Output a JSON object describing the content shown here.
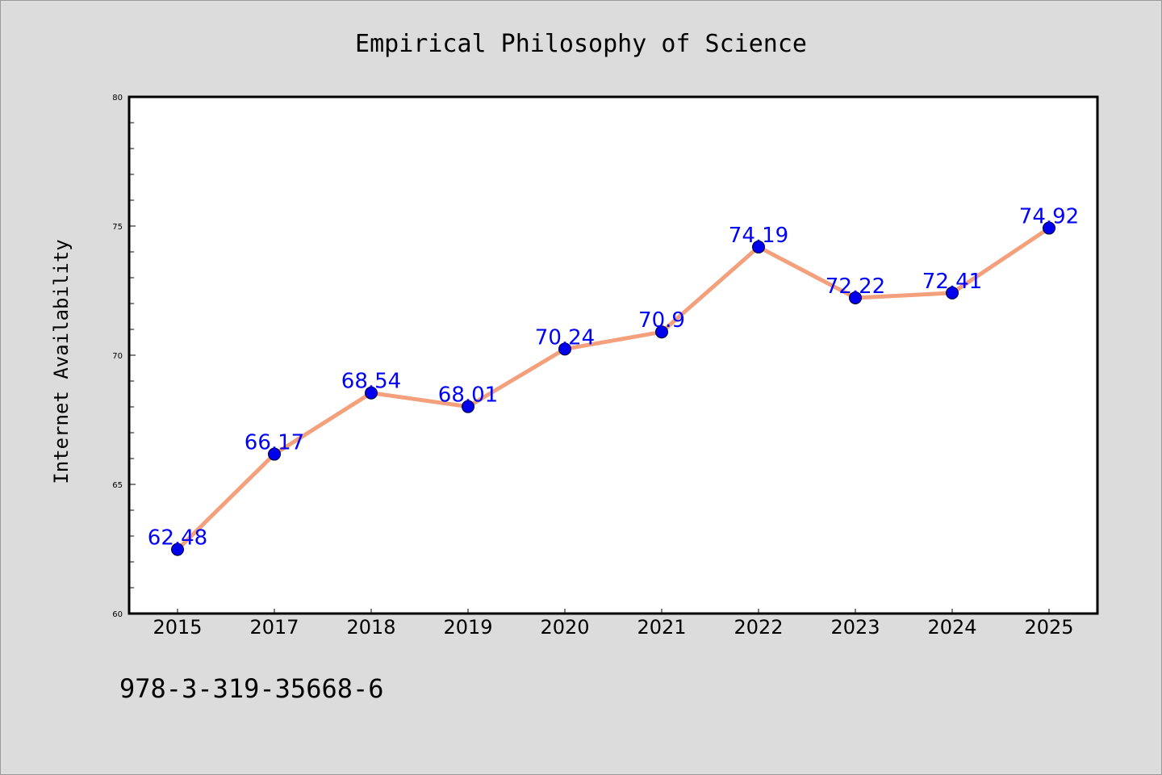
{
  "chart_data": {
    "type": "line",
    "title": "Empirical Philosophy of Science",
    "xlabel": "",
    "ylabel": "Internet Availability",
    "categories": [
      "2015",
      "2017",
      "2018",
      "2019",
      "2020",
      "2021",
      "2022",
      "2023",
      "2024",
      "2025"
    ],
    "series": [
      {
        "values": [
          62.48,
          66.17,
          68.54,
          68.01,
          70.24,
          70.9,
          74.19,
          72.22,
          72.41,
          74.92
        ],
        "labels": [
          "62.48",
          "66.17",
          "68.54",
          "68.01",
          "70.24",
          "70.9",
          "74.19",
          "72.22",
          "72.41",
          "74.92"
        ]
      }
    ],
    "ylim": [
      60,
      80
    ],
    "yticks": [
      "60",
      "65",
      "70",
      "75",
      "80"
    ],
    "grid": false,
    "colors": {
      "line": "#f4a07c",
      "marker": "#0000ee",
      "label": "#0000ff",
      "background": "#dcdcdc",
      "plot_bg": "#ffffff"
    }
  },
  "footer": {
    "text": "978-3-319-35668-6"
  }
}
